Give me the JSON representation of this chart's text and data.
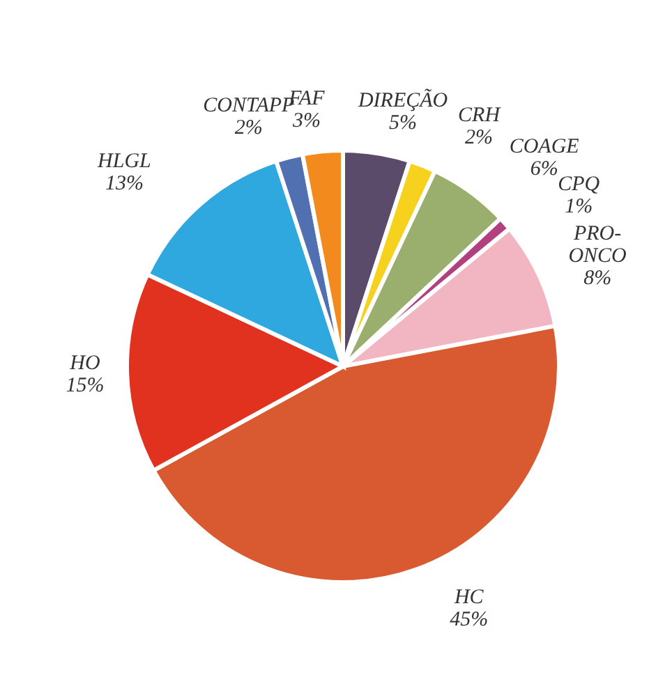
{
  "chart_data": {
    "type": "pie",
    "categories": [
      "DIREÇÃO",
      "CRH",
      "COAGE",
      "CPQ",
      "PRO-ONCO",
      "HC",
      "HO",
      "HLGL",
      "CONTAPP",
      "FAF"
    ],
    "values": [
      5,
      2,
      6,
      1,
      8,
      45,
      15,
      13,
      2,
      3
    ],
    "value_labels": [
      "5%",
      "2%",
      "6%",
      "1%",
      "8%",
      "45%",
      "15%",
      "13%",
      "2%",
      "3%"
    ],
    "colors": [
      "#5b4b6b",
      "#f6d21e",
      "#9aae6e",
      "#b2407e",
      "#f2b6c2",
      "#d95a30",
      "#e1321f",
      "#2fa8e0",
      "#5070b2",
      "#f28a1e"
    ]
  }
}
